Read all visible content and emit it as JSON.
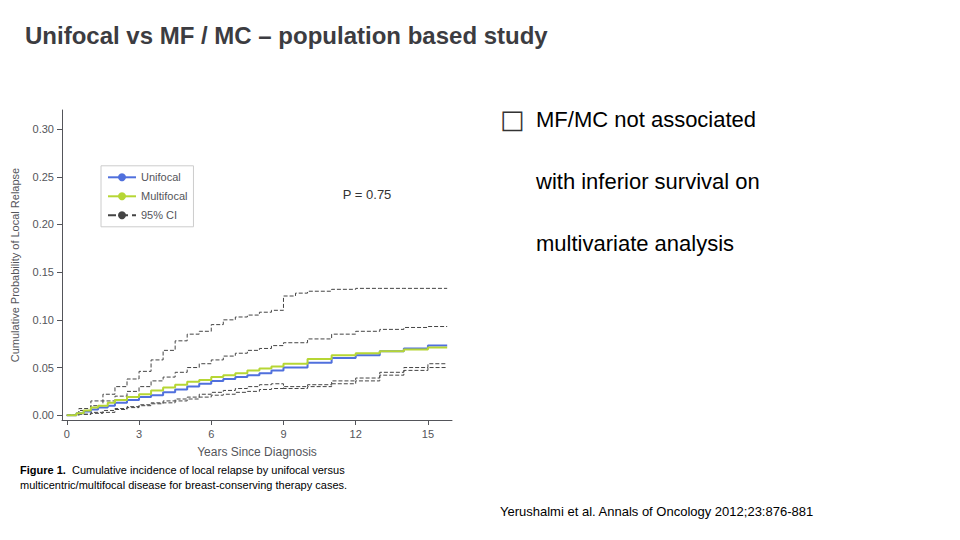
{
  "chart_data": {
    "type": "step",
    "title": "Unifocal vs MF / MC – population based study",
    "xlabel": "Years Since Diagnosis",
    "ylabel": "Cumulative Probability of Local Relapse",
    "xlim": [
      -0.2,
      16
    ],
    "ylim": [
      -0.005,
      0.32
    ],
    "xticks": [
      0,
      3,
      6,
      9,
      12,
      15
    ],
    "yticks": [
      {
        "value": 0.0,
        "label": "0.00"
      },
      {
        "value": 0.05,
        "label": "0.05"
      },
      {
        "value": 0.1,
        "label": "0.10"
      },
      {
        "value": 0.15,
        "label": "0.15"
      },
      {
        "value": 0.2,
        "label": "0.20"
      },
      {
        "value": 0.25,
        "label": "0.25"
      },
      {
        "value": 0.3,
        "label": "0.30"
      }
    ],
    "grid": false,
    "legend": "upper left",
    "annotation": "P = 0.75",
    "caption_bold": "Figure 1.",
    "caption": "  Cumulative incidence of local relapse by unifocal versus\nmulticentric/multifocal disease for breast-conserving therapy cases.",
    "bullet_mark": "□",
    "bullet_text": [
      "MF/MC not associated",
      "with inferior survival on",
      "multivariate analysis"
    ],
    "citation": "Yerushalmi et al. Annals of Oncology 2012;23:876-881",
    "series": [
      {
        "name": "95% CI",
        "color": "#444444",
        "line_style": "dashed",
        "x": [
          0,
          0.5,
          1.0,
          1.5,
          2.0,
          2.5,
          3.0,
          3.5,
          4.0,
          4.5,
          5.0,
          5.5,
          6.0,
          6.5,
          7.0,
          7.5,
          8.0,
          8.5,
          9.0,
          9.5,
          10.0,
          11.0,
          12.0,
          13.0,
          14.0,
          15.0,
          15.8
        ],
        "values": [
          0.0,
          0.007,
          0.015,
          0.022,
          0.03,
          0.038,
          0.046,
          0.058,
          0.068,
          0.078,
          0.085,
          0.088,
          0.095,
          0.1,
          0.103,
          0.105,
          0.108,
          0.11,
          0.125,
          0.128,
          0.13,
          0.132,
          0.133,
          0.133,
          0.133,
          0.133,
          0.133
        ]
      },
      {
        "name": "95% CI",
        "color": "#444444",
        "line_style": "dashed",
        "x": [
          0,
          0.5,
          1.0,
          1.5,
          2.0,
          2.5,
          3.0,
          3.5,
          4.0,
          4.5,
          5.0,
          5.5,
          6.0,
          6.5,
          7.0,
          7.5,
          8.0,
          8.5,
          9.0,
          10.0,
          11.0,
          12.0,
          13.0,
          14.0,
          15.0,
          15.8
        ],
        "values": [
          0.0,
          0.001,
          0.003,
          0.005,
          0.007,
          0.009,
          0.011,
          0.013,
          0.015,
          0.017,
          0.019,
          0.022,
          0.024,
          0.026,
          0.028,
          0.03,
          0.032,
          0.033,
          0.028,
          0.03,
          0.033,
          0.036,
          0.042,
          0.047,
          0.05,
          0.05
        ]
      },
      {
        "name": "95% CI",
        "color": "#444444",
        "line_style": "dashed",
        "x": [
          0,
          0.5,
          1.0,
          1.5,
          2.0,
          2.5,
          3.0,
          3.5,
          4.0,
          4.5,
          5.0,
          5.5,
          6.0,
          6.5,
          7.0,
          7.5,
          8.0,
          8.5,
          9.0,
          10.0,
          11.0,
          12.0,
          13.0,
          14.0,
          15.0,
          15.8
        ],
        "values": [
          0.0,
          0.005,
          0.01,
          0.015,
          0.02,
          0.025,
          0.03,
          0.036,
          0.04,
          0.045,
          0.05,
          0.054,
          0.058,
          0.062,
          0.065,
          0.068,
          0.07,
          0.073,
          0.076,
          0.08,
          0.085,
          0.088,
          0.09,
          0.092,
          0.093,
          0.093
        ]
      },
      {
        "name": "95% CI",
        "color": "#444444",
        "line_style": "dashed",
        "x": [
          0,
          0.5,
          1.0,
          1.5,
          2.0,
          2.5,
          3.0,
          3.5,
          4.0,
          4.5,
          5.0,
          5.5,
          6.0,
          6.5,
          7.0,
          7.5,
          8.0,
          8.5,
          9.0,
          10.0,
          11.0,
          12.0,
          13.0,
          14.0,
          15.0,
          15.8
        ],
        "values": [
          0.0,
          0.001,
          0.002,
          0.003,
          0.006,
          0.008,
          0.01,
          0.012,
          0.013,
          0.015,
          0.017,
          0.019,
          0.021,
          0.022,
          0.024,
          0.025,
          0.027,
          0.028,
          0.03,
          0.032,
          0.036,
          0.039,
          0.045,
          0.05,
          0.054,
          0.054
        ]
      },
      {
        "name": "Unifocal",
        "line_style": "solid",
        "x": [
          0,
          0.4,
          0.7,
          1.0,
          1.3,
          1.7,
          2.0,
          2.5,
          3.0,
          3.5,
          4.0,
          4.5,
          5.0,
          5.5,
          6.0,
          6.5,
          7.0,
          7.5,
          8.0,
          8.5,
          9.0,
          10.0,
          11.0,
          12.0,
          13.0,
          14.0,
          15.0,
          15.8
        ],
        "values": [
          0.0,
          0.002,
          0.004,
          0.006,
          0.008,
          0.01,
          0.013,
          0.016,
          0.019,
          0.021,
          0.024,
          0.027,
          0.03,
          0.033,
          0.036,
          0.038,
          0.04,
          0.042,
          0.044,
          0.047,
          0.05,
          0.055,
          0.06,
          0.063,
          0.067,
          0.07,
          0.073,
          0.073
        ]
      },
      {
        "name": "Multifocal",
        "line_style": "solid",
        "x": [
          0,
          0.4,
          0.7,
          1.0,
          1.3,
          1.7,
          2.0,
          2.5,
          3.0,
          3.5,
          4.0,
          4.5,
          5.0,
          5.5,
          6.0,
          6.5,
          7.0,
          7.5,
          8.0,
          8.5,
          9.0,
          10.0,
          11.0,
          12.0,
          13.0,
          14.0,
          15.0,
          15.8
        ],
        "values": [
          0.0,
          0.002,
          0.005,
          0.008,
          0.01,
          0.013,
          0.016,
          0.019,
          0.022,
          0.026,
          0.029,
          0.032,
          0.035,
          0.037,
          0.04,
          0.042,
          0.044,
          0.047,
          0.049,
          0.051,
          0.054,
          0.059,
          0.063,
          0.065,
          0.067,
          0.069,
          0.071,
          0.071
        ]
      }
    ]
  }
}
